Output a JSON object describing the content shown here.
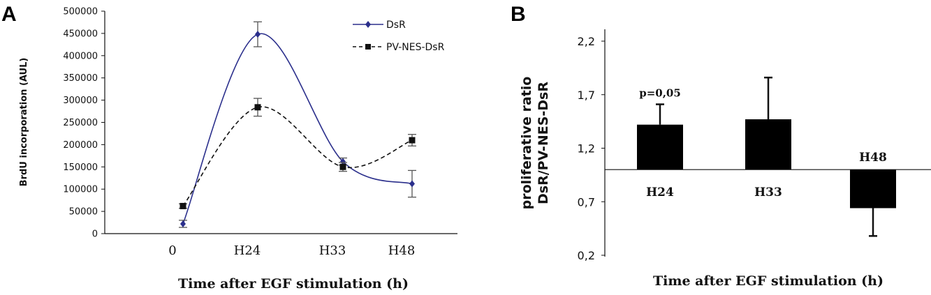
{
  "chart_data": [
    {
      "panel": "A",
      "type": "line",
      "xlabel": "Time after EGF stimulation (h)",
      "ylabel": "BrdU incorporation (AUL)",
      "categories": [
        "0",
        "H24",
        "H33",
        "H48"
      ],
      "ylim": [
        0,
        500000
      ],
      "yticks": [
        "0",
        "50000",
        "100000",
        "150000",
        "200000",
        "250000",
        "300000",
        "350000",
        "400000",
        "450000",
        "500000"
      ],
      "legend_position": "top-right",
      "series": [
        {
          "name": "DsR",
          "values": [
            22000,
            448000,
            162000,
            112000
          ],
          "errors": [
            8000,
            28000,
            8000,
            30000
          ],
          "style": "solid",
          "marker": "diamond",
          "color": "#2b2f8c"
        },
        {
          "name": "PV-NES-DsR",
          "values": [
            62000,
            284000,
            150000,
            210000
          ],
          "errors": [
            5000,
            20000,
            10000,
            13000
          ],
          "style": "dashed",
          "marker": "square",
          "color": "#111111"
        }
      ]
    },
    {
      "panel": "B",
      "type": "bar",
      "xlabel": "Time after EGF stimulation (h)",
      "ylabel_line1": "proliferative ratio",
      "ylabel_line2": "DsR/PV-NES-DsR",
      "categories": [
        "H24",
        "H33",
        "H48"
      ],
      "values": [
        1.42,
        1.47,
        0.64
      ],
      "errors": [
        0.19,
        0.39,
        0.26
      ],
      "baseline": 1.0,
      "ylim": [
        0.2,
        2.2
      ],
      "yticks": [
        "0,2",
        "0,7",
        "1,2",
        "1,7",
        "2,2"
      ],
      "annotation": "p=0,05",
      "color": "#000000"
    }
  ],
  "panels": {
    "a": "A",
    "b": "B"
  }
}
